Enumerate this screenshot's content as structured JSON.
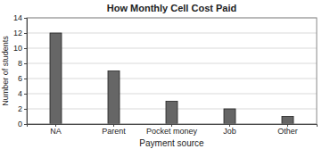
{
  "chart_data": {
    "type": "bar",
    "title": "How Monthly Cell Cost Paid",
    "x_label": "Payment source",
    "y_label": "Number of students",
    "categories": [
      "NA",
      "Parent",
      "Pocket money",
      "Job",
      "Other"
    ],
    "values": [
      12,
      7,
      3,
      2,
      1
    ],
    "color": "#666666",
    "ylim": [
      0,
      14
    ],
    "yticks": [
      0,
      2,
      4,
      6,
      8,
      10,
      12,
      14
    ],
    "grid": true
  }
}
